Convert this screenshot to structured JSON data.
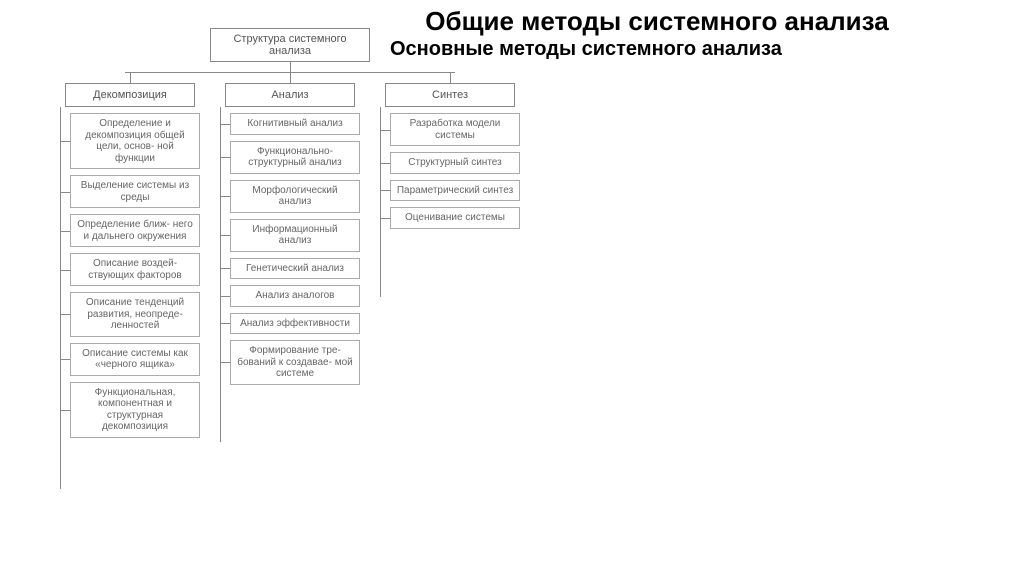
{
  "titles": {
    "main": "Общие методы системного анализа",
    "sub": "Основные методы системного анализа"
  },
  "diagram": {
    "type": "tree",
    "background_color": "#ffffff",
    "border_color": "#888888",
    "text_color": "#555555",
    "root_fontsize": 11,
    "head_fontsize": 11,
    "leaf_fontsize": 10,
    "root": "Структура системного анализа",
    "branches": [
      {
        "head": "Декомпозиция",
        "items": [
          "Определение и декомпозиция общей цели, основ- ной функции",
          "Выделение системы из среды",
          "Определение ближ- него и дальнего окружения",
          "Описание воздей- ствующих факторов",
          "Описание тенденций развития, неопреде- ленностей",
          "Описание системы как «черного ящика»",
          "Функциональная, компонентная и структурная декомпозиция"
        ]
      },
      {
        "head": "Анализ",
        "items": [
          "Когнитивный анализ",
          "Функционально- структурный анализ",
          "Морфологический анализ",
          "Информационный анализ",
          "Генетический анализ",
          "Анализ аналогов",
          "Анализ эффективности",
          "Формирование тре- бований к создавае- мой системе"
        ]
      },
      {
        "head": "Синтез",
        "items": [
          "Разработка модели системы",
          "Структурный синтез",
          "Параметрический синтез",
          "Оценивание системы"
        ]
      }
    ]
  }
}
